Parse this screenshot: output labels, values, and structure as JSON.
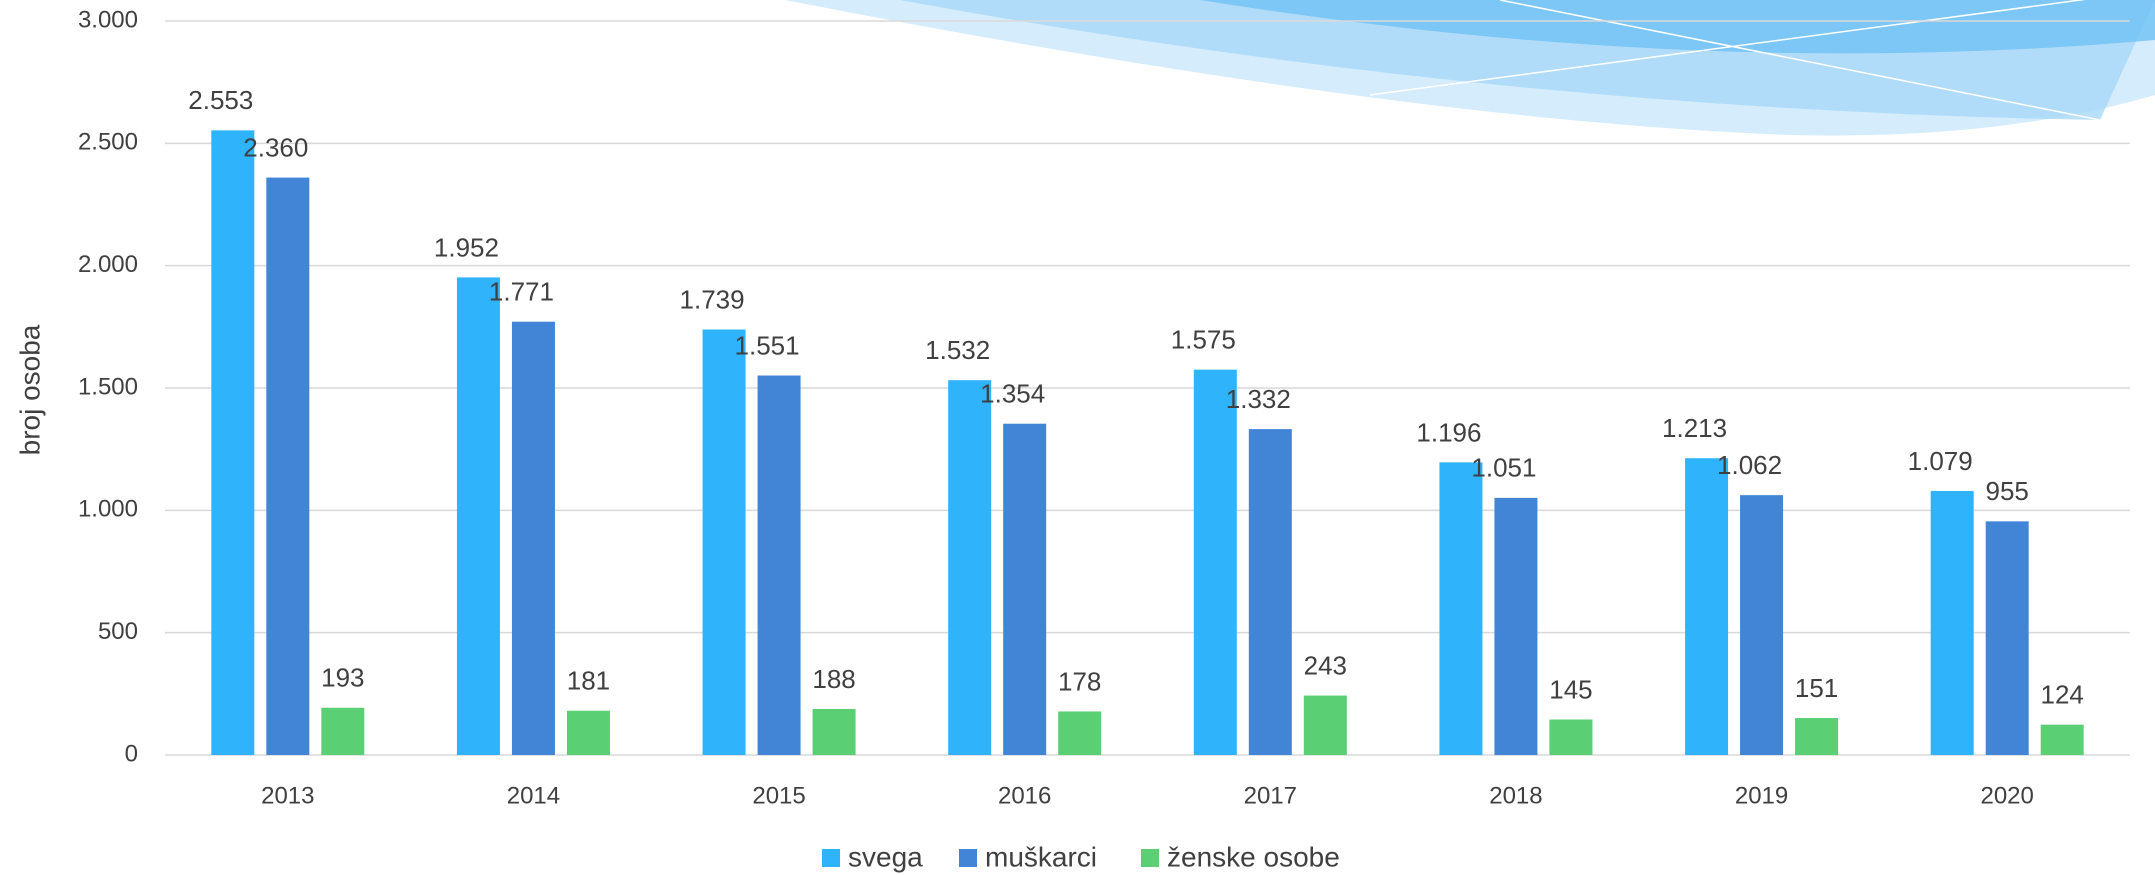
{
  "chart_data": {
    "type": "bar",
    "y_label": "broj osoba",
    "categories": [
      "2013",
      "2014",
      "2015",
      "2016",
      "2017",
      "2018",
      "2019",
      "2020"
    ],
    "series": [
      {
        "name": "svega",
        "color": "#2fb3fb",
        "values": [
          2553,
          1952,
          1739,
          1532,
          1575,
          1196,
          1213,
          1079
        ],
        "value_labels": [
          "2.553",
          "1.952",
          "1.739",
          "1.532",
          "1.575",
          "1.196",
          "1.213",
          "1.079"
        ]
      },
      {
        "name": "muškarci",
        "color": "#4285d7",
        "values": [
          2360,
          1771,
          1551,
          1354,
          1332,
          1051,
          1062,
          955
        ],
        "value_labels": [
          "2.360",
          "1.771",
          "1.551",
          "1.354",
          "1.332",
          "1.051",
          "1.062",
          "955"
        ]
      },
      {
        "name": "ženske osobe",
        "color": "#5bcf74",
        "values": [
          193,
          181,
          188,
          178,
          243,
          145,
          151,
          124
        ]
      }
    ],
    "ylim": [
      0,
      3000
    ],
    "yticks": [
      0,
      500,
      {
        "value": 1000,
        "label": "1.000"
      },
      {
        "value": 1500,
        "label": "1.500"
      },
      {
        "value": 2000,
        "label": "2.000"
      },
      {
        "value": 2500,
        "label": "2.500"
      },
      {
        "value": 3000,
        "label": "3.000"
      }
    ],
    "grid": true
  }
}
